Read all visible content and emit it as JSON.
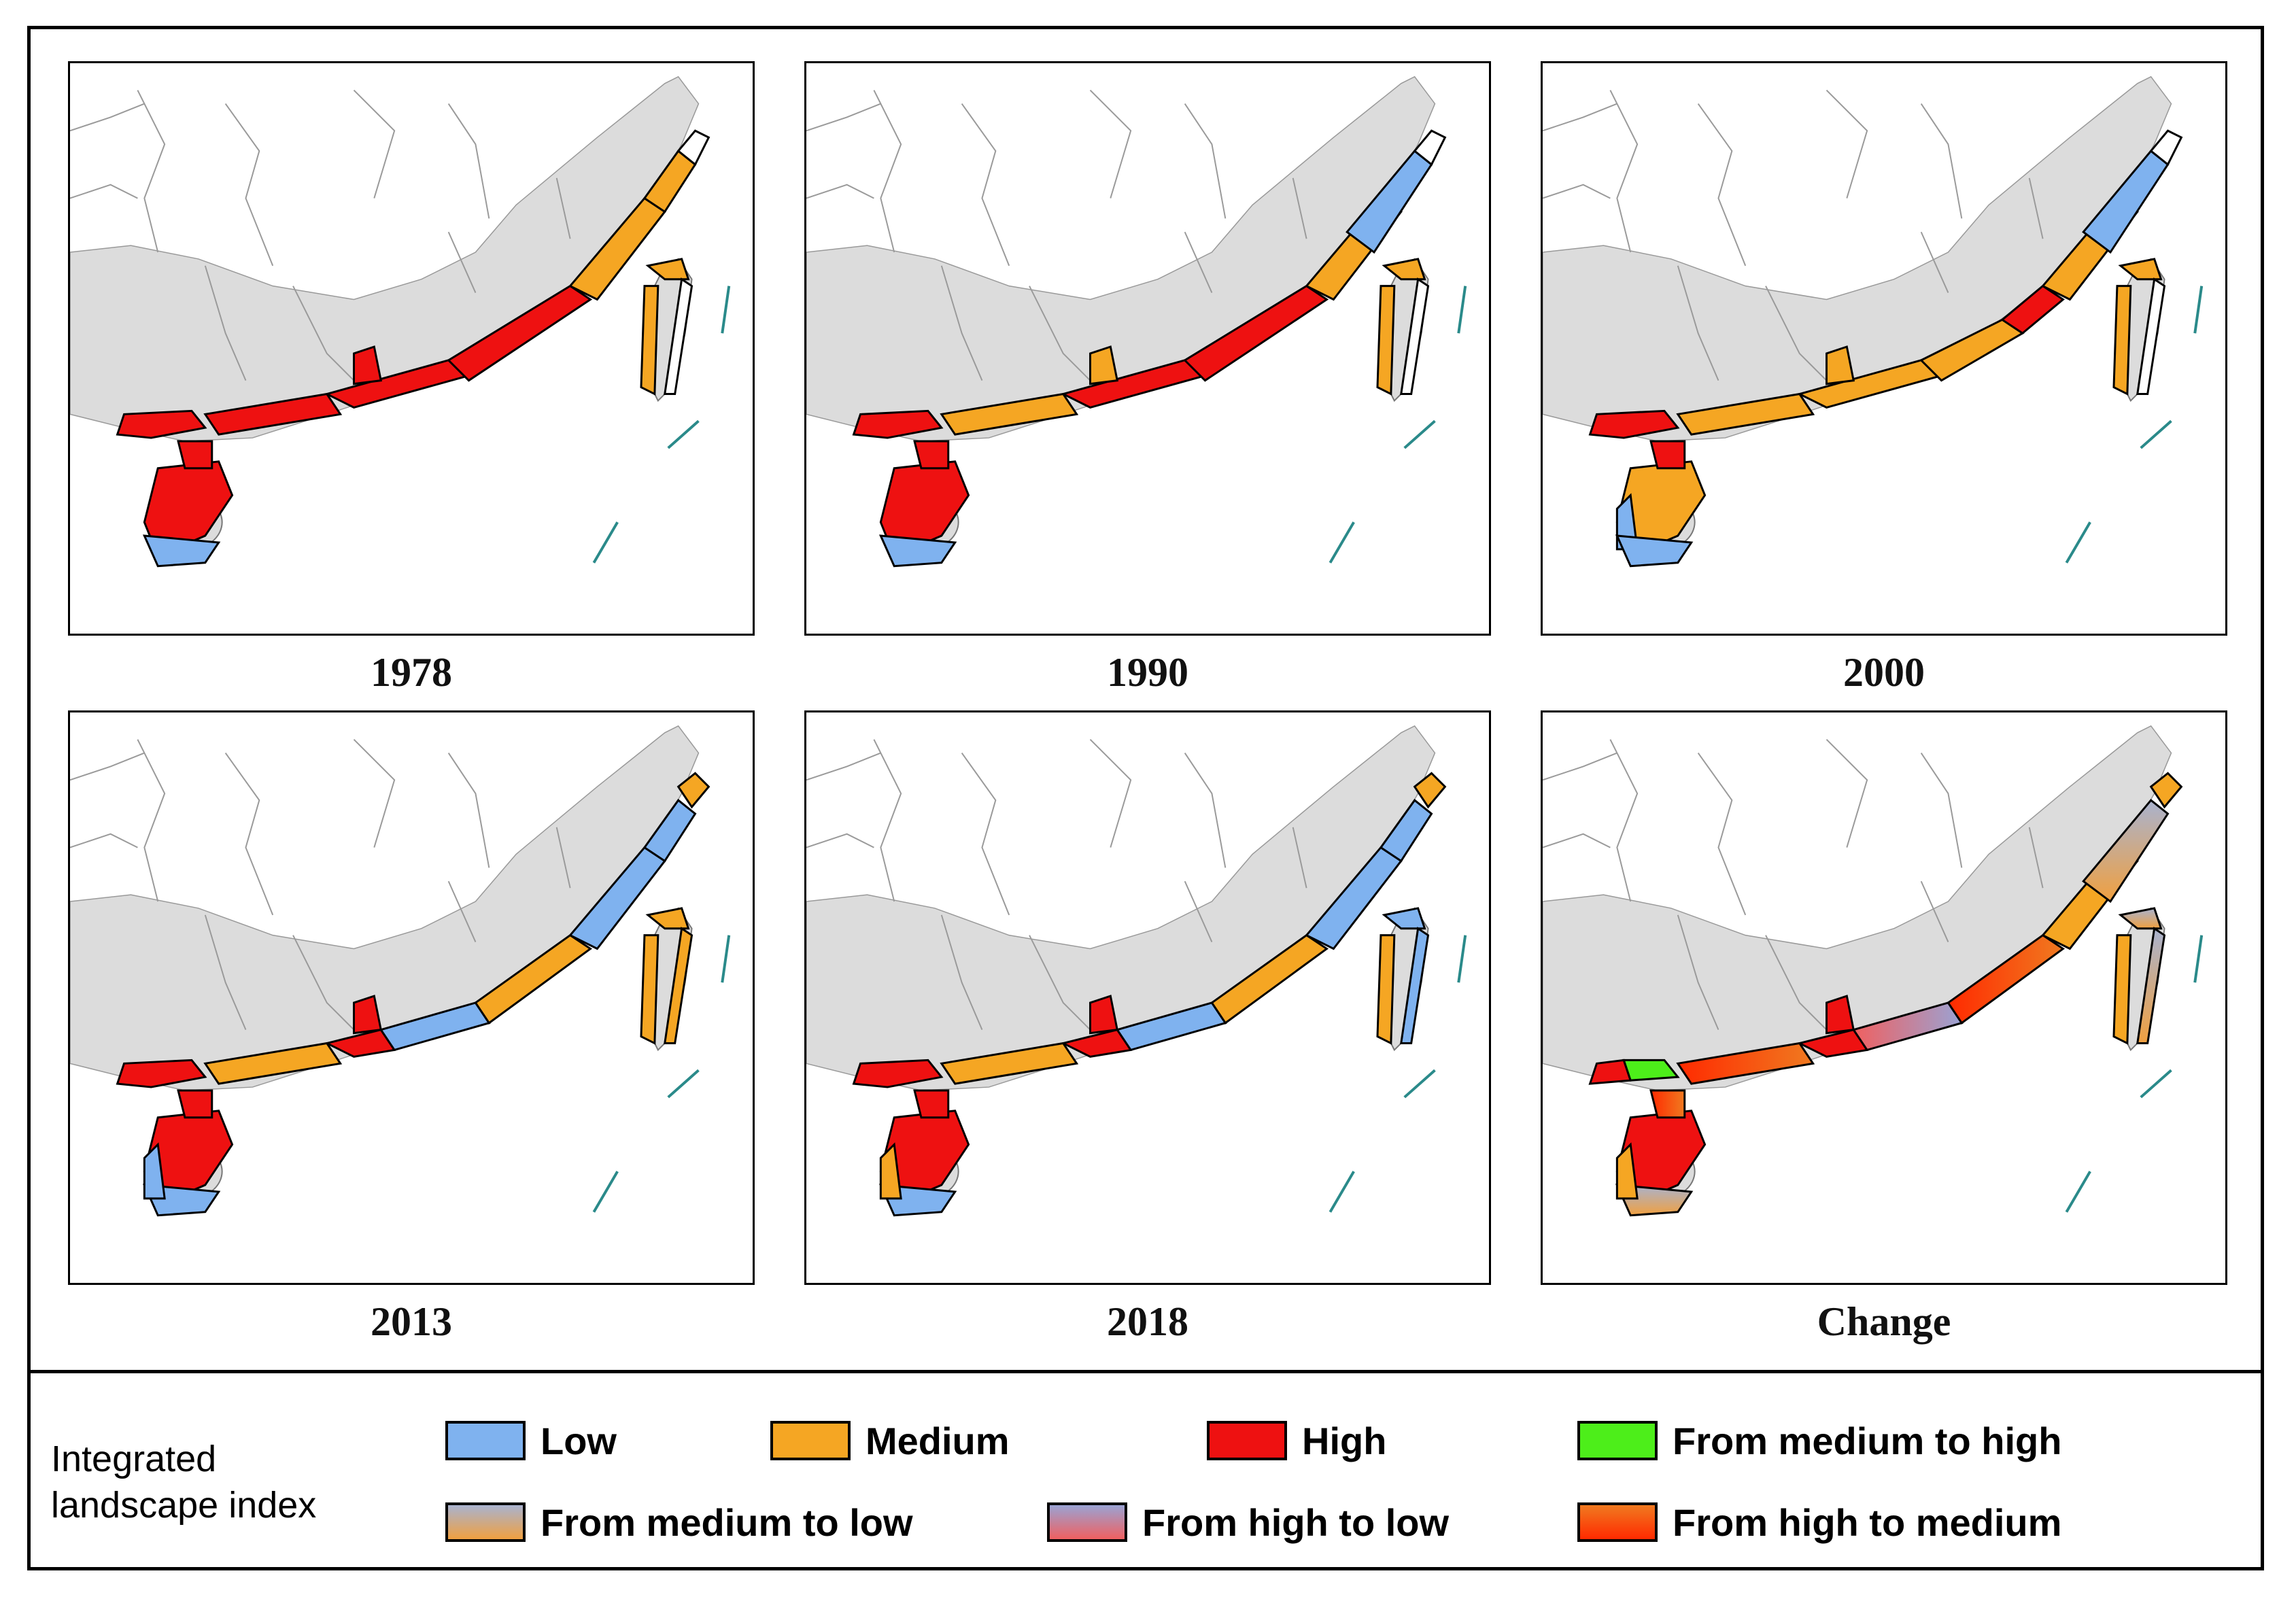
{
  "figure": {
    "panels": [
      {
        "id": "p1978",
        "label": "1978"
      },
      {
        "id": "p1990",
        "label": "1990"
      },
      {
        "id": "p2000",
        "label": "2000"
      },
      {
        "id": "p2013",
        "label": "2013"
      },
      {
        "id": "p2018",
        "label": "2018"
      },
      {
        "id": "pchange",
        "label": "Change"
      }
    ]
  },
  "legend": {
    "title_line1": "Integrated",
    "title_line2": "landscape index",
    "items": [
      {
        "key": "low",
        "label": "Low",
        "color": "#7fb2ef"
      },
      {
        "key": "medium",
        "label": "Medium",
        "color": "#f5a623"
      },
      {
        "key": "high",
        "label": "High",
        "color": "#ee1111"
      },
      {
        "key": "m2h",
        "label": "From medium to high",
        "color": "#4dee1a"
      },
      {
        "key": "m2l",
        "label": "From medium to low",
        "gradient": [
          "#a9b3cf",
          "#f0a040"
        ]
      },
      {
        "key": "h2l",
        "label": "From high to low",
        "gradient": [
          "#9aa3d4",
          "#f06060"
        ]
      },
      {
        "key": "h2m",
        "label": "From high to medium",
        "gradient": [
          "#f07a20",
          "#ff2a00"
        ]
      }
    ]
  },
  "colors": {
    "land": "#dcdcdc",
    "ocean": "#ffffff",
    "island_marks": "#2a8a8a"
  }
}
